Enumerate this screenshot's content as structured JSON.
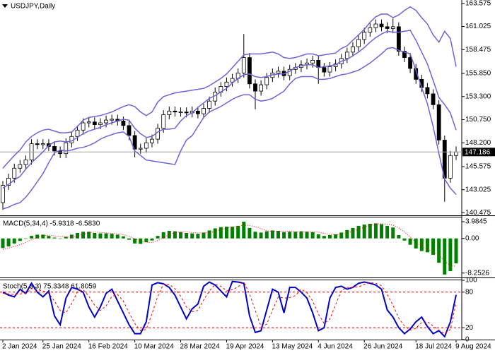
{
  "chart_data": [
    {
      "type": "candlestick",
      "title": "USDJPY,Daily",
      "open": [
        141.6,
        143.5,
        144.3,
        145.4,
        145.8,
        146.3,
        148.1,
        148.0,
        148.1,
        147.8,
        147.3,
        147.0,
        148.2,
        148.9,
        149.6,
        150.4,
        150.5,
        150.2,
        150.4,
        150.7,
        150.8,
        150.6,
        150.1,
        149.0,
        147.5,
        147.6,
        148.2,
        148.6,
        149.8,
        151.3,
        151.7,
        151.6,
        151.6,
        151.5,
        151.7,
        151.4,
        152.0,
        152.8,
        153.8,
        154.4,
        154.9,
        155.3,
        155.9,
        157.6,
        154.7,
        153.9,
        154.6,
        155.4,
        155.9,
        156.1,
        155.6,
        156.3,
        156.5,
        156.8,
        157.0,
        157.3,
        156.5,
        156.0,
        156.6,
        156.9,
        157.5,
        158.2,
        158.8,
        159.6,
        160.4,
        160.9,
        161.3,
        161.0,
        160.8,
        161.0,
        158.3,
        157.6,
        156.4,
        155.2,
        154.3,
        153.6,
        152.4,
        148.5,
        144.3,
        146.8
      ],
      "high": [
        144.0,
        144.8,
        145.9,
        146.3,
        146.8,
        148.6,
        148.6,
        148.6,
        148.6,
        148.3,
        147.8,
        148.7,
        149.4,
        150.1,
        150.9,
        151.0,
        151.0,
        150.9,
        151.2,
        151.3,
        151.3,
        151.1,
        150.6,
        149.5,
        148.1,
        148.7,
        149.1,
        150.3,
        151.8,
        152.2,
        152.2,
        152.1,
        152.1,
        152.2,
        152.2,
        152.5,
        153.3,
        154.3,
        154.9,
        155.4,
        155.8,
        156.4,
        160.2,
        158.1,
        155.2,
        155.1,
        155.9,
        156.4,
        156.6,
        156.6,
        156.8,
        157.0,
        157.3,
        157.5,
        157.8,
        157.8,
        157.0,
        157.1,
        157.4,
        158.0,
        158.7,
        159.3,
        160.1,
        160.9,
        161.4,
        161.8,
        161.8,
        161.5,
        161.9,
        161.5,
        158.8,
        158.1,
        156.9,
        155.7,
        154.8,
        154.1,
        152.9,
        149.0,
        147.3,
        147.8
      ],
      "low": [
        140.8,
        143.0,
        143.8,
        144.9,
        145.3,
        145.8,
        147.5,
        147.5,
        147.3,
        146.8,
        146.5,
        146.5,
        147.7,
        148.4,
        149.1,
        149.9,
        149.7,
        149.7,
        149.9,
        150.2,
        150.1,
        149.6,
        148.5,
        146.6,
        147.0,
        147.1,
        147.7,
        148.1,
        149.3,
        150.8,
        151.1,
        151.1,
        151.0,
        151.0,
        150.9,
        150.9,
        151.5,
        152.3,
        153.3,
        153.9,
        154.4,
        154.8,
        155.4,
        154.2,
        151.9,
        153.4,
        154.1,
        154.9,
        155.4,
        155.1,
        155.1,
        155.8,
        156.0,
        156.3,
        156.5,
        154.7,
        155.5,
        155.5,
        156.1,
        156.4,
        157.0,
        157.7,
        158.3,
        159.1,
        159.9,
        160.4,
        160.5,
        160.3,
        160.3,
        157.8,
        157.1,
        155.9,
        154.7,
        153.8,
        153.1,
        151.9,
        148.0,
        141.7,
        143.8,
        146.3
      ],
      "close": [
        143.5,
        144.3,
        145.4,
        145.8,
        146.3,
        148.1,
        148.0,
        148.1,
        147.8,
        147.3,
        147.0,
        148.2,
        148.9,
        149.6,
        150.4,
        150.5,
        150.2,
        150.4,
        150.7,
        150.8,
        150.6,
        150.1,
        149.0,
        147.5,
        147.6,
        148.2,
        148.6,
        149.8,
        151.3,
        151.7,
        151.6,
        151.6,
        151.5,
        151.7,
        151.4,
        152.0,
        152.8,
        153.8,
        154.4,
        154.9,
        155.3,
        155.9,
        157.6,
        154.7,
        153.9,
        154.6,
        155.4,
        155.9,
        156.1,
        155.6,
        156.3,
        156.5,
        156.8,
        157.0,
        157.3,
        156.5,
        156.0,
        156.6,
        156.9,
        157.5,
        158.2,
        158.8,
        159.6,
        160.4,
        160.9,
        161.3,
        161.0,
        160.8,
        161.0,
        158.3,
        157.6,
        156.4,
        155.2,
        154.3,
        153.6,
        152.4,
        148.5,
        144.3,
        146.8,
        147.186
      ],
      "up_color": "#ffffff",
      "down_color": "#000000",
      "series": [
        {
          "mark": "line",
          "color": "#6f63d9",
          "width": 1.5,
          "values": [
            145.4,
            146.1,
            146.8,
            147.4,
            148.3,
            148.9,
            149.3,
            149.6,
            149.7,
            149.5,
            149.3,
            149.3,
            149.4,
            150.0,
            150.7,
            151.0,
            151.1,
            151.2,
            151.4,
            151.6,
            151.9,
            152.2,
            152.4,
            152.2,
            151.6,
            151.2,
            151.6,
            152.7,
            153.3,
            153.5,
            153.7,
            153.8,
            153.9,
            154.0,
            154.1,
            154.2,
            154.5,
            154.9,
            155.3,
            155.8,
            156.5,
            157.2,
            157.9,
            158.0,
            158.0,
            158.0,
            158.1,
            158.2,
            158.0,
            157.6,
            157.5,
            157.6,
            157.8,
            158.0,
            158.0,
            157.8,
            157.9,
            158.0,
            158.1,
            158.6,
            158.9,
            159.5,
            160.1,
            160.7,
            161.5,
            162.1,
            162.4,
            162.4,
            162.0,
            162.3,
            162.8,
            163.2,
            162.8,
            162.0,
            161.3,
            160.1,
            159.3,
            160.5,
            159.7,
            156.6
          ]
        },
        {
          "mark": "line",
          "color": "#6f63d9",
          "width": 1.5,
          "values": [
            143.2,
            143.6,
            144.1,
            144.5,
            145.3,
            146.0,
            146.6,
            147.2,
            147.9,
            148.3,
            148.4,
            148.3,
            148.4,
            148.8,
            149.2,
            149.5,
            149.7,
            149.9,
            150.2,
            150.4,
            150.6,
            150.8,
            150.7,
            149.8,
            149.2,
            148.8,
            148.9,
            149.4,
            149.7,
            149.7,
            149.8,
            150.6,
            151.2,
            151.5,
            152.1,
            152.6,
            153.1,
            153.4,
            153.8,
            154.2,
            154.8,
            155.3,
            155.7,
            155.8,
            155.5,
            155.4,
            155.5,
            155.7,
            155.8,
            155.8,
            156.1,
            156.5,
            156.7,
            156.8,
            156.8,
            156.5,
            156.6,
            156.7,
            156.8,
            157.2,
            157.4,
            157.8,
            158.2,
            158.7,
            159.3,
            159.8,
            160.2,
            160.5,
            160.4,
            160.4,
            160.5,
            160.6,
            159.5,
            158.2,
            156.9,
            155.1,
            153.2,
            152.4,
            151.5,
            149.6
          ]
        },
        {
          "mark": "line",
          "color": "#6f63d9",
          "width": 1.5,
          "values": [
            140.9,
            141.1,
            141.4,
            141.6,
            142.2,
            143.0,
            143.9,
            144.8,
            146.0,
            147.1,
            147.4,
            147.3,
            147.4,
            147.6,
            147.7,
            147.9,
            148.2,
            148.6,
            148.9,
            149.1,
            149.3,
            149.4,
            148.9,
            147.3,
            146.8,
            146.3,
            146.2,
            146.1,
            146.0,
            145.9,
            145.8,
            147.3,
            148.5,
            149.0,
            150.0,
            151.0,
            151.6,
            151.9,
            152.2,
            152.6,
            153.0,
            153.3,
            153.5,
            153.5,
            153.0,
            152.8,
            152.9,
            153.1,
            153.5,
            153.9,
            154.7,
            155.3,
            155.5,
            155.5,
            155.5,
            155.2,
            155.2,
            155.3,
            155.5,
            155.7,
            155.8,
            156.0,
            156.2,
            156.6,
            157.0,
            157.5,
            158.0,
            158.6,
            158.7,
            158.4,
            158.2,
            158.0,
            156.2,
            154.3,
            152.5,
            150.0,
            147.0,
            144.2,
            143.2,
            142.5
          ]
        }
      ],
      "ylim": [
        140.2,
        163.95
      ],
      "yticks": [
        163.575,
        161.025,
        158.475,
        {
          "value": 155.85,
          "label": "155.850"
        },
        {
          "value": 153.3,
          "label": "153.300"
        },
        {
          "value": 150.75,
          "label": "150.750"
        },
        {
          "value": 148.2,
          "label": "148.200"
        },
        145.575,
        143.025,
        140.475
      ],
      "last_price": 147.186
    },
    {
      "type": "bar",
      "title": "MACD(5,34,4) -5.9318 -6.5830",
      "series": [
        {
          "mark": "bar",
          "color": "#008000",
          "values": [
            -2.3,
            -1.9,
            -1.2,
            -0.6,
            -0.1,
            0.6,
            0.9,
            0.9,
            0.6,
            0.2,
            -0.1,
            0.4,
            0.9,
            1.3,
            1.6,
            1.6,
            1.3,
            1.2,
            1.2,
            1.1,
            0.9,
            0.5,
            -0.3,
            -1.2,
            -1.3,
            -0.9,
            -0.5,
            0.6,
            1.5,
            1.8,
            1.7,
            1.5,
            1.3,
            1.2,
            1.1,
            1.4,
            1.9,
            2.4,
            2.7,
            2.8,
            2.8,
            3.0,
            4.0,
            2.5,
            1.6,
            1.4,
            1.7,
            1.9,
            1.8,
            1.5,
            1.6,
            1.6,
            1.7,
            1.6,
            1.5,
            1.0,
            0.6,
            0.8,
            1.0,
            1.4,
            2.0,
            2.5,
            3.0,
            3.3,
            3.5,
            3.6,
            3.4,
            3.0,
            2.6,
            0.8,
            -0.5,
            -1.5,
            -2.4,
            -3.0,
            -3.3,
            -3.9,
            -5.8,
            -8.6,
            -7.8,
            -5.9318
          ]
        },
        {
          "mark": "line",
          "color": "#ff0000",
          "dash": "dotted",
          "width": 1,
          "values": [
            -2.6,
            -2.3,
            -1.9,
            -1.5,
            -0.9,
            -0.3,
            0.2,
            0.6,
            0.8,
            0.6,
            0.4,
            0.3,
            0.3,
            0.6,
            1.0,
            1.4,
            1.5,
            1.4,
            1.3,
            1.2,
            1.1,
            0.9,
            0.5,
            -0.1,
            -0.6,
            -0.9,
            -1.0,
            -0.5,
            0.2,
            0.9,
            1.4,
            1.6,
            1.6,
            1.4,
            1.3,
            1.3,
            1.4,
            1.7,
            2.1,
            2.5,
            2.7,
            2.8,
            3.2,
            3.1,
            2.8,
            2.4,
            1.8,
            1.7,
            1.7,
            1.7,
            1.7,
            1.6,
            1.6,
            1.6,
            1.6,
            1.5,
            1.2,
            1.0,
            0.9,
            1.0,
            1.3,
            1.7,
            2.2,
            2.7,
            3.1,
            3.4,
            3.5,
            3.4,
            3.2,
            2.5,
            1.5,
            0.4,
            -0.9,
            -1.9,
            -2.6,
            -3.2,
            -4.0,
            -5.4,
            -6.5,
            -6.583
          ]
        }
      ],
      "ylim": [
        -9.3,
        5.0
      ],
      "yticks": [
        3.9845,
        {
          "value": 0,
          "label": "0.00"
        },
        -8.2526
      ]
    },
    {
      "type": "line",
      "title": "Stoch(5,3,3) 75.3348 61.8059",
      "categories": [
        "2 Jan 2024",
        null,
        null,
        null,
        null,
        null,
        null,
        "25 Jan 2024",
        null,
        null,
        null,
        null,
        null,
        null,
        null,
        "16 Feb 2024",
        null,
        null,
        null,
        null,
        null,
        null,
        null,
        "10 Mar 2024",
        null,
        null,
        null,
        null,
        null,
        null,
        null,
        "28 Mar 2024",
        null,
        null,
        null,
        null,
        null,
        null,
        null,
        "19 Apr 2024",
        null,
        null,
        null,
        null,
        null,
        null,
        null,
        "13 May 2024",
        null,
        null,
        null,
        null,
        null,
        null,
        null,
        "4 Jun 2024",
        null,
        null,
        null,
        null,
        null,
        null,
        null,
        "26 Jun 2024",
        null,
        null,
        null,
        null,
        null,
        null,
        null,
        null,
        "18 Jul 2024",
        null,
        null,
        null,
        null,
        null,
        null,
        "9 Aug 2024"
      ],
      "series": [
        {
          "mark": "line",
          "color": "#0000c8",
          "width": 2,
          "values": [
            80,
            75,
            72,
            85,
            78,
            95,
            80,
            72,
            82,
            40,
            25,
            70,
            88,
            85,
            80,
            55,
            38,
            55,
            78,
            85,
            65,
            45,
            25,
            10,
            10,
            30,
            92,
            96,
            94,
            88,
            75,
            55,
            35,
            52,
            60,
            90,
            97,
            92,
            82,
            72,
            98,
            97,
            95,
            40,
            12,
            15,
            50,
            85,
            80,
            45,
            88,
            88,
            80,
            70,
            45,
            15,
            20,
            70,
            88,
            90,
            85,
            88,
            95,
            97,
            95,
            92,
            85,
            50,
            38,
            20,
            10,
            18,
            30,
            38,
            22,
            10,
            15,
            5,
            30,
            75.3348
          ]
        },
        {
          "mark": "line",
          "color": "#ff0000",
          "dash": "dashed",
          "width": 1,
          "values": [
            78,
            77,
            76,
            77,
            78,
            86,
            84,
            82,
            78,
            65,
            49,
            45,
            61,
            81,
            84,
            73,
            58,
            49,
            57,
            73,
            76,
            65,
            45,
            27,
            15,
            17,
            44,
            73,
            94,
            93,
            86,
            73,
            55,
            47,
            49,
            67,
            82,
            93,
            90,
            82,
            84,
            89,
            97,
            77,
            49,
            22,
            26,
            50,
            72,
            70,
            71,
            74,
            85,
            79,
            65,
            43,
            27,
            35,
            59,
            83,
            88,
            88,
            89,
            93,
            96,
            95,
            91,
            76,
            58,
            36,
            23,
            16,
            19,
            29,
            30,
            23,
            16,
            10,
            17,
            61.8059
          ]
        }
      ],
      "levels": [
        80,
        20
      ],
      "level_color": "#c00000",
      "ylim": [
        0,
        100
      ],
      "yticks": [
        100,
        80,
        20,
        0
      ]
    }
  ]
}
